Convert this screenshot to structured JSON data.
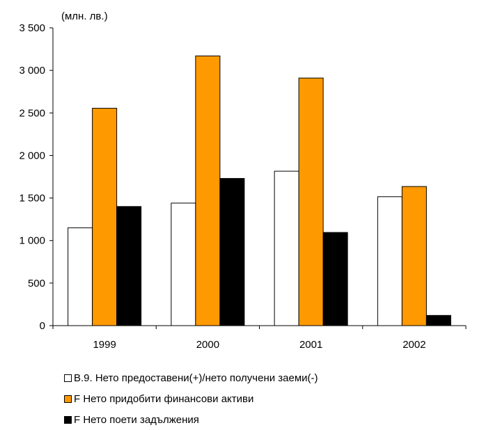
{
  "chart_data": {
    "type": "bar",
    "unit_label": "(млн. лв.)",
    "categories": [
      "1999",
      "2000",
      "2001",
      "2002"
    ],
    "ylim": [
      0,
      3500
    ],
    "yticks": [
      0,
      500,
      1000,
      1500,
      2000,
      2500,
      3000,
      3500
    ],
    "ytick_labels": [
      "0",
      "500",
      "1 000",
      "1 500",
      "2 000",
      "2 500",
      "3 000",
      "3 500"
    ],
    "grid": false,
    "legend_position": "bottom",
    "series": [
      {
        "name": "B.9. Нето предоставени(+)/нето получени заеми(-)",
        "color": "#ffffff",
        "values": [
          1150,
          1440,
          1815,
          1515
        ]
      },
      {
        "name": "F Нето придобити финансови активи",
        "color": "#ff9900",
        "values": [
          2555,
          3170,
          2910,
          1635
        ]
      },
      {
        "name": "F Нето поети задължения",
        "color": "#000000",
        "values": [
          1400,
          1730,
          1095,
          120
        ]
      }
    ]
  }
}
